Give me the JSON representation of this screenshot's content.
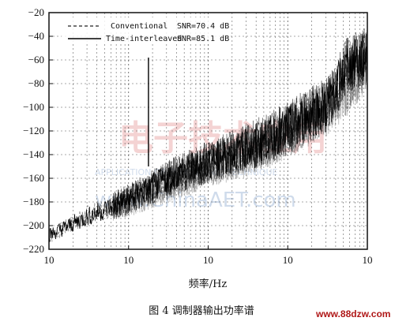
{
  "chart_data": {
    "type": "line",
    "y_tick_labels": [
      "−20",
      "−40",
      "−60",
      "−80",
      "−100",
      "−120",
      "−140",
      "−160",
      "−180",
      "−200",
      "−220"
    ],
    "y_ticks": [
      -20,
      -40,
      -60,
      -80,
      -100,
      -120,
      -140,
      -160,
      -180,
      -200,
      -220
    ],
    "x_tick_labels": [
      "10",
      "10",
      "10",
      "10",
      "10"
    ],
    "x_decades": [
      0,
      1,
      2,
      3,
      4
    ],
    "x_scale": "log",
    "ylim": [
      -220,
      -20
    ],
    "xlabel": "频率/Hz",
    "grid": true,
    "legend_position": "top-left",
    "legend": [
      {
        "name": "Conventional",
        "snr": "SNR=70.4 dB",
        "style": "dashed"
      },
      {
        "name": "Time-interleaved",
        "snr": "SNR=85.1 dB",
        "style": "solid"
      }
    ],
    "series": [
      {
        "name": "Conventional",
        "style": "dashed",
        "points": [
          [
            0.0,
            -210
          ],
          [
            0.5,
            -190
          ],
          [
            1.0,
            -180
          ],
          [
            1.5,
            -165
          ],
          [
            2.0,
            -150
          ],
          [
            2.5,
            -138
          ],
          [
            3.0,
            -120
          ],
          [
            3.5,
            -100
          ],
          [
            3.7,
            -88
          ],
          [
            4.0,
            -62
          ]
        ]
      },
      {
        "name": "Time-interleaved",
        "style": "solid",
        "points": [
          [
            0.0,
            -208
          ],
          [
            0.5,
            -192
          ],
          [
            1.0,
            -178
          ],
          [
            1.5,
            -160
          ],
          [
            2.0,
            -146
          ],
          [
            2.5,
            -134
          ],
          [
            3.0,
            -118
          ],
          [
            3.5,
            -98
          ],
          [
            3.75,
            -64
          ],
          [
            4.0,
            -56
          ]
        ]
      }
    ],
    "spike": {
      "x_decade": 1.25,
      "y_top": -58
    }
  },
  "caption": "图 4   调制器输出功率谱",
  "site_url": "www.88dzw.com",
  "watermark": {
    "text_cn": "电子技术应用",
    "text_en": "APPLICATION OF ELECTRONIC TECHNIQUE",
    "url": "www.ChinaAET.com"
  },
  "colors": {
    "axis": "#111111",
    "grid": "#444444",
    "series_dark": "#000000",
    "series_light": "#777777",
    "watermark_red": "#d23a3a",
    "watermark_blue": "#2b5fa8",
    "site_red": "#b01818"
  }
}
